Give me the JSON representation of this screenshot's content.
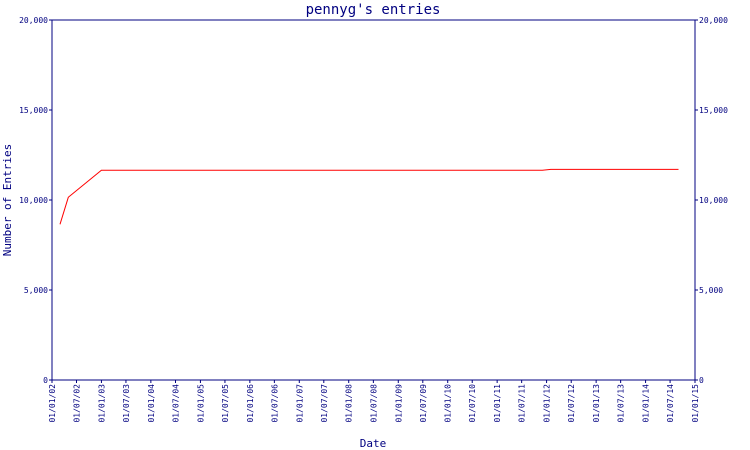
{
  "chart_data": {
    "type": "line",
    "title": "pennyg's entries",
    "xlabel": "Date",
    "ylabel": "Number of Entries",
    "ylim": [
      0,
      20000
    ],
    "y_ticks": [
      0,
      5000,
      10000,
      15000,
      20000
    ],
    "y_tick_labels": [
      "0",
      "5,000",
      "10,000",
      "15,000",
      "20,000"
    ],
    "x_range": [
      "01/01/02",
      "01/01/15"
    ],
    "x_tick_labels": [
      "01/01/02",
      "01/07/02",
      "01/01/03",
      "01/07/03",
      "01/01/04",
      "01/07/04",
      "01/01/05",
      "01/07/05",
      "01/01/06",
      "01/07/06",
      "01/01/07",
      "01/07/07",
      "01/01/08",
      "01/07/08",
      "01/01/09",
      "01/07/09",
      "01/01/10",
      "01/07/10",
      "01/01/11",
      "01/07/11",
      "01/01/12",
      "01/07/12",
      "01/01/13",
      "01/07/13",
      "01/01/14",
      "01/07/14",
      "01/01/15"
    ],
    "grid": false,
    "colors": {
      "line": "#ff0000",
      "axis": "#000080",
      "text": "#000080"
    },
    "series": [
      {
        "x": [
          "01/03/02",
          "01/05/02",
          "01/01/03",
          "01/12/11",
          "01/02/12",
          "01/09/14"
        ],
        "values": [
          8650,
          10150,
          11650,
          11650,
          11700,
          11700
        ]
      }
    ]
  }
}
